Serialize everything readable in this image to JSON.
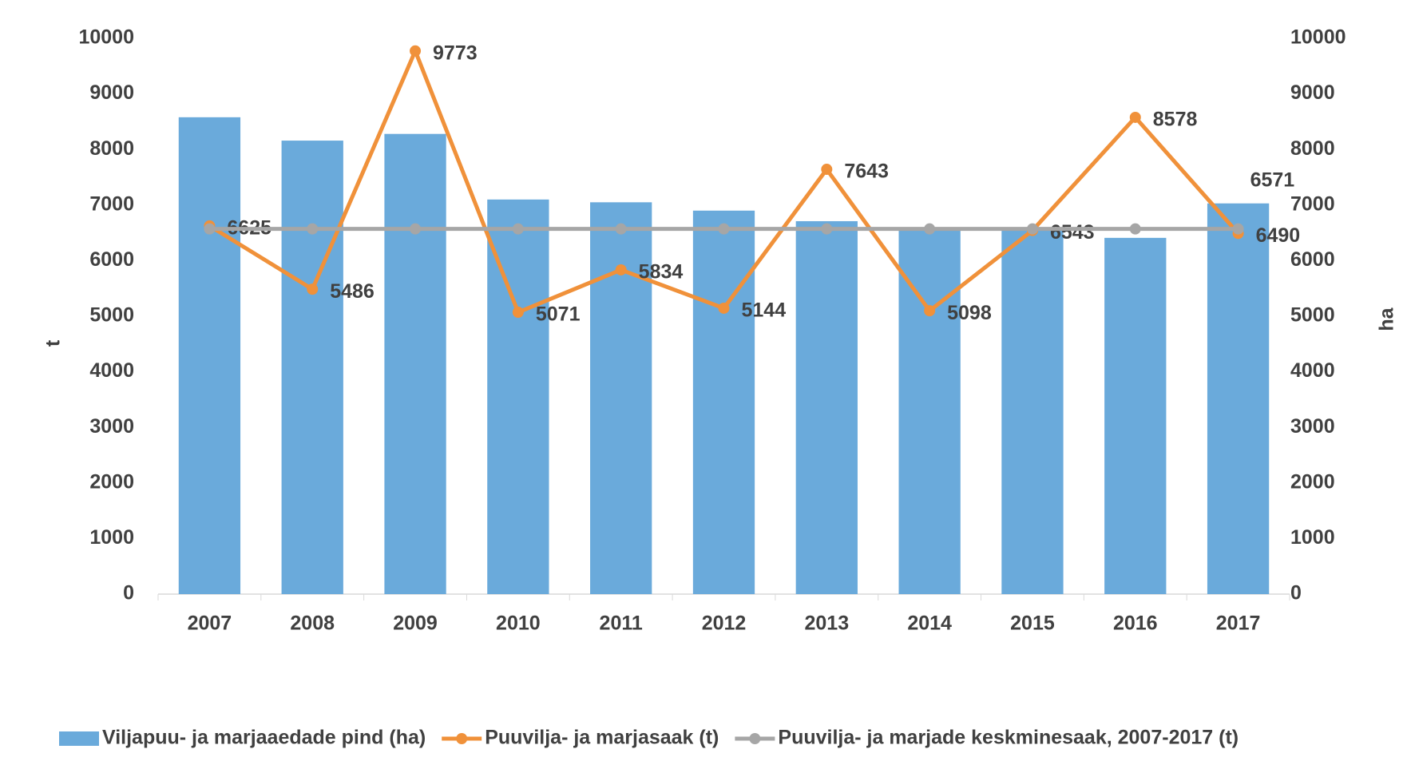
{
  "chart_data": {
    "type": "bar",
    "categories": [
      "2007",
      "2008",
      "2009",
      "2010",
      "2011",
      "2012",
      "2013",
      "2014",
      "2015",
      "2016",
      "2017"
    ],
    "series": [
      {
        "name": "Viljapuu- ja marjaaedade pind (ha)",
        "type": "bar",
        "axis": "y2",
        "color": "#6aaadb",
        "values": [
          8580,
          8160,
          8280,
          7100,
          7050,
          6900,
          6710,
          6590,
          6560,
          6410,
          7030
        ]
      },
      {
        "name": "Puuvilja- ja marjasaak (t)",
        "type": "line",
        "color": "#f0913a",
        "labeled": true,
        "values": [
          6625,
          5486,
          9773,
          5071,
          5834,
          5144,
          7643,
          5098,
          6543,
          8578,
          6490
        ]
      },
      {
        "name": "Puuvilja- ja marjade keskminesaak, 2007-2017 (t)",
        "type": "line",
        "color": "#a6a6a6",
        "values": [
          6571,
          6571,
          6571,
          6571,
          6571,
          6571,
          6571,
          6571,
          6571,
          6571,
          6571
        ]
      }
    ],
    "ylabel": "t",
    "y2label": "ha",
    "ylim": [
      0,
      10000
    ],
    "yticks": [
      0,
      1000,
      2000,
      3000,
      4000,
      5000,
      6000,
      7000,
      8000,
      9000,
      10000
    ],
    "y2lim": [
      0,
      10000
    ],
    "y2ticks": [
      0,
      1000,
      2000,
      3000,
      4000,
      5000,
      6000,
      7000,
      8000,
      9000,
      10000
    ],
    "legend": "bottom"
  }
}
